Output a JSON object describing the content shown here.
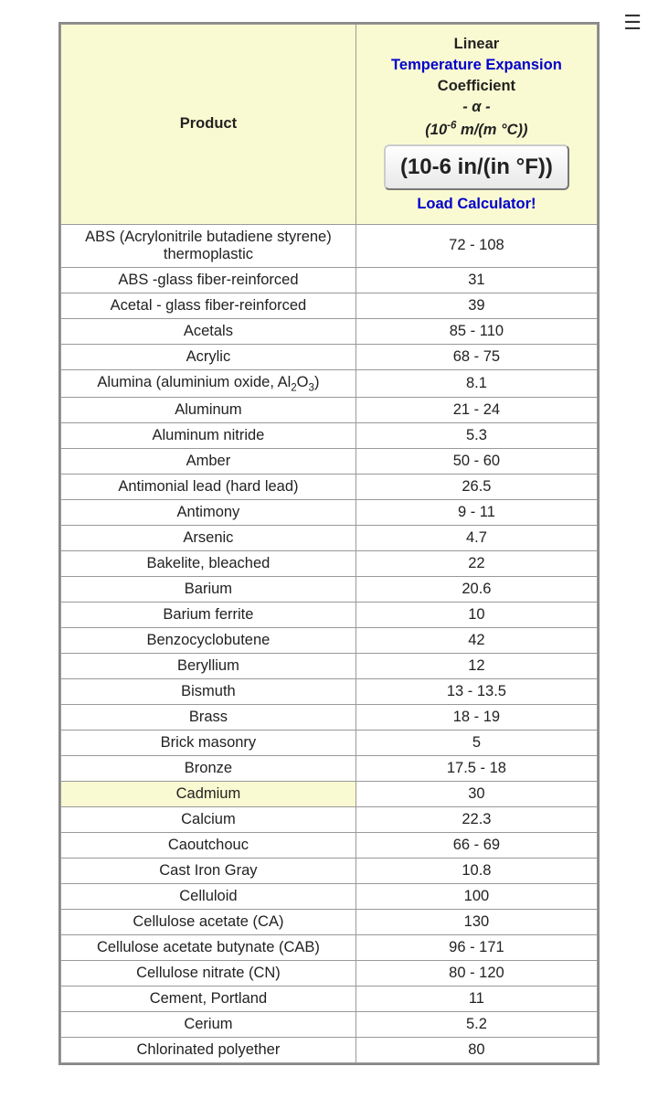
{
  "menu_glyph": "☰",
  "header": {
    "product_label": "Product",
    "coef_line1": "Linear",
    "coef_link": "Temperature Expansion",
    "coef_line2": "Coefficient",
    "coef_line3_prefix": "- ",
    "coef_line3_alpha": "α",
    "coef_line3_suffix": " -",
    "coef_line4_prefix": "(10",
    "coef_line4_sup": "-6",
    "coef_line4_suffix": " m/(m °C))",
    "button_label": "(10-6 in/(in °F))",
    "load_calc": "Load Calculator!"
  },
  "rows": [
    {
      "product": "ABS (Acrylonitrile butadiene styrene) thermoplastic",
      "value": "72 - 108"
    },
    {
      "product": "ABS -glass fiber-reinforced",
      "value": "31"
    },
    {
      "product": "Acetal - glass fiber-reinforced",
      "value": "39"
    },
    {
      "product": "Acetals",
      "value": "85 - 110"
    },
    {
      "product": "Acrylic",
      "value": "68 - 75"
    },
    {
      "product": "SPECIAL_ALUMINA",
      "value": "8.1"
    },
    {
      "product": "Aluminum",
      "value": "21 - 24"
    },
    {
      "product": "Aluminum nitride",
      "value": "5.3"
    },
    {
      "product": "Amber",
      "value": "50 - 60"
    },
    {
      "product": "Antimonial lead (hard lead)",
      "value": "26.5"
    },
    {
      "product": "Antimony",
      "value": "9 - 11"
    },
    {
      "product": "Arsenic",
      "value": "4.7"
    },
    {
      "product": "Bakelite, bleached",
      "value": "22"
    },
    {
      "product": "Barium",
      "value": "20.6"
    },
    {
      "product": "Barium ferrite",
      "value": "10"
    },
    {
      "product": "Benzocyclobutene",
      "value": "42"
    },
    {
      "product": "Beryllium",
      "value": "12"
    },
    {
      "product": "Bismuth",
      "value": "13 - 13.5"
    },
    {
      "product": "Brass",
      "value": "18 - 19"
    },
    {
      "product": "Brick masonry",
      "value": "5"
    },
    {
      "product": "Bronze",
      "value": "17.5 - 18"
    },
    {
      "product": "Cadmium",
      "value": "30",
      "highlighted": true
    },
    {
      "product": "Calcium",
      "value": "22.3"
    },
    {
      "product": "Caoutchouc",
      "value": "66 - 69"
    },
    {
      "product": "Cast Iron Gray",
      "value": "10.8"
    },
    {
      "product": "Celluloid",
      "value": "100"
    },
    {
      "product": "Cellulose acetate (CA)",
      "value": "130"
    },
    {
      "product": "Cellulose acetate butynate (CAB)",
      "value": "96 - 171"
    },
    {
      "product": "Cellulose nitrate (CN)",
      "value": "80 - 120"
    },
    {
      "product": "Cement, Portland",
      "value": "11"
    },
    {
      "product": "Cerium",
      "value": "5.2"
    },
    {
      "product": "Chlorinated polyether",
      "value": "80"
    }
  ],
  "alumina": {
    "prefix": "Alumina (aluminium oxide, Al",
    "sub1": "2",
    "mid": "O",
    "sub2": "3",
    "suffix": ")"
  },
  "colors": {
    "header_bg": "#fafad2",
    "border": "#999999",
    "link": "#0000cc",
    "text": "#222222"
  }
}
